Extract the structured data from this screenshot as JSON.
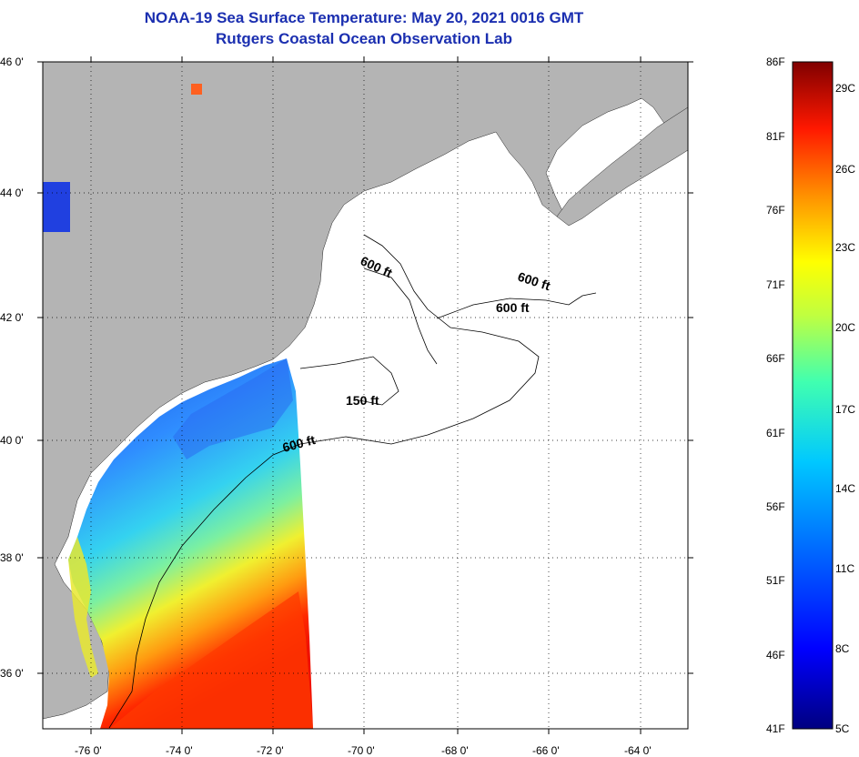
{
  "title": {
    "line1": "NOAA-19 Sea Surface Temperature:  May 20, 2021 0016 GMT",
    "line2": "Rutgers Coastal Ocean Observation Lab"
  },
  "map": {
    "lat_labels": [
      "46 0'",
      "44 0'",
      "42 0'",
      "40 0'",
      "38 0'",
      "36 0'"
    ],
    "lon_labels": [
      "-76 0'",
      "-74 0'",
      "-72 0'",
      "-70 0'",
      "-68 0'",
      "-66 0'",
      "-64 0'"
    ],
    "contour_labels": [
      "600 ft",
      "600 ft",
      "600 ft",
      "150 ft",
      "600 ft"
    ],
    "colors": {
      "land": "#b4b4b4",
      "ocean_nodata": "#ffffff",
      "title": "#1b2fb0"
    }
  },
  "colorbar": {
    "fahrenheit_labels": [
      "86F",
      "81F",
      "76F",
      "71F",
      "66F",
      "61F",
      "56F",
      "51F",
      "46F",
      "41F"
    ],
    "celsius_labels": [
      "29C",
      "26C",
      "23C",
      "20C",
      "17C",
      "14C",
      "11C",
      "8C",
      "5C"
    ]
  }
}
